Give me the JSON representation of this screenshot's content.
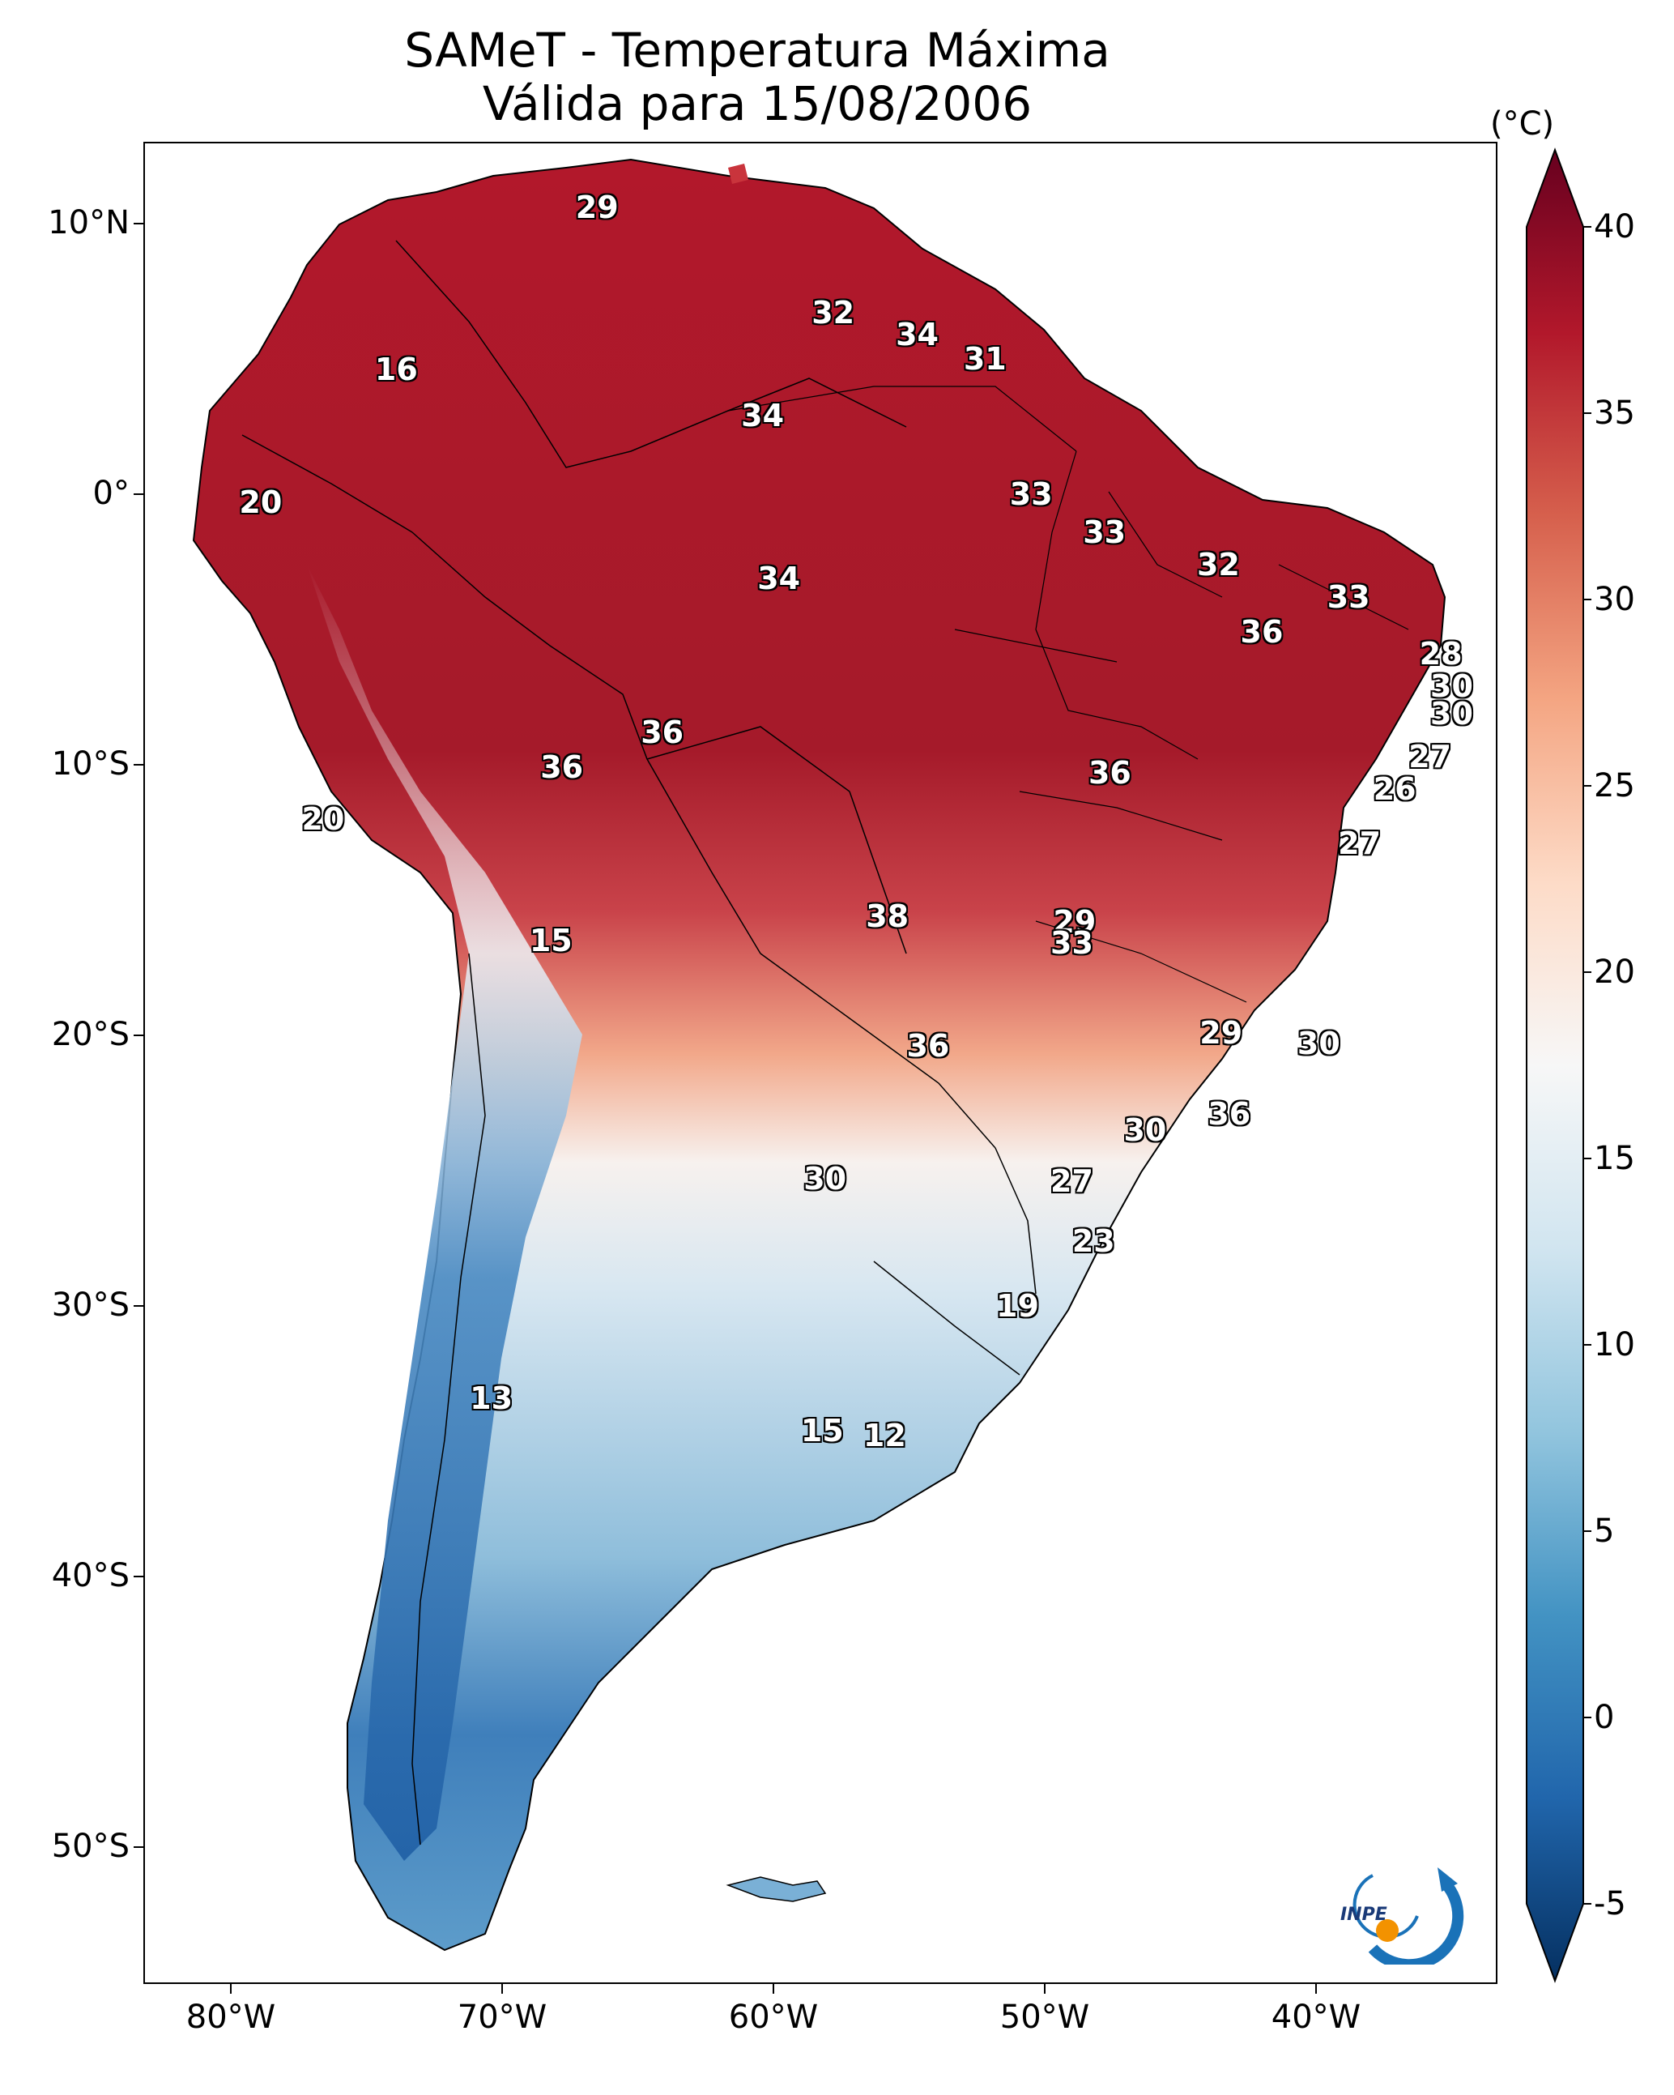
{
  "title": {
    "line1": "SAMeT - Temperatura Máxima",
    "line2": "Válida para 15/08/2006"
  },
  "lat_labels": [
    "10°N",
    "0°",
    "10°S",
    "20°S",
    "30°S",
    "40°S",
    "50°S"
  ],
  "lon_labels": [
    "80°W",
    "70°W",
    "60°W",
    "50°W",
    "40°W"
  ],
  "colorbar": {
    "unit": "(°C)",
    "min": -5,
    "max": 40,
    "tick_labels": [
      "-5",
      "0",
      "5",
      "10",
      "15",
      "20",
      "25",
      "30",
      "35",
      "40"
    ],
    "colors": [
      "#053061",
      "#2166ac",
      "#4393c3",
      "#92c5de",
      "#d1e5f0",
      "#f7f7f7",
      "#fddbc7",
      "#f4a582",
      "#d6604d",
      "#b2182b",
      "#67001f"
    ]
  },
  "station_labels": [
    {
      "text": "29",
      "lon": -66.5,
      "lat": 10.6
    },
    {
      "text": "32",
      "lon": -57.8,
      "lat": 6.7
    },
    {
      "text": "34",
      "lon": -54.7,
      "lat": 5.9
    },
    {
      "text": "31",
      "lon": -52.2,
      "lat": 5.0
    },
    {
      "text": "16",
      "lon": -73.9,
      "lat": 4.6
    },
    {
      "text": "34",
      "lon": -60.4,
      "lat": 2.9
    },
    {
      "text": "20",
      "lon": -78.9,
      "lat": -0.3
    },
    {
      "text": "33",
      "lon": -50.5,
      "lat": 0.0
    },
    {
      "text": "33",
      "lon": -47.8,
      "lat": -1.4
    },
    {
      "text": "32",
      "lon": -43.6,
      "lat": -2.6
    },
    {
      "text": "34",
      "lon": -59.8,
      "lat": -3.1
    },
    {
      "text": "33",
      "lon": -38.8,
      "lat": -3.8
    },
    {
      "text": "36",
      "lon": -42.0,
      "lat": -5.1
    },
    {
      "text": "28",
      "lon": -35.4,
      "lat": -5.9
    },
    {
      "text": "30",
      "lon": -35.0,
      "lat": -7.1
    },
    {
      "text": "30",
      "lon": -35.0,
      "lat": -8.1
    },
    {
      "text": "36",
      "lon": -64.1,
      "lat": -8.8
    },
    {
      "text": "36",
      "lon": -67.8,
      "lat": -10.1
    },
    {
      "text": "36",
      "lon": -47.6,
      "lat": -10.3
    },
    {
      "text": "27",
      "lon": -35.8,
      "lat": -9.7
    },
    {
      "text": "26",
      "lon": -37.1,
      "lat": -10.9
    },
    {
      "text": "20",
      "lon": -76.6,
      "lat": -12.0
    },
    {
      "text": "27",
      "lon": -38.4,
      "lat": -12.9
    },
    {
      "text": "38",
      "lon": -55.8,
      "lat": -15.6
    },
    {
      "text": "29",
      "lon": -48.9,
      "lat": -15.8
    },
    {
      "text": "15",
      "lon": -68.2,
      "lat": -16.5
    },
    {
      "text": "33",
      "lon": -49.0,
      "lat": -16.6
    },
    {
      "text": "29",
      "lon": -43.5,
      "lat": -19.9
    },
    {
      "text": "30",
      "lon": -39.9,
      "lat": -20.3
    },
    {
      "text": "36",
      "lon": -54.3,
      "lat": -20.4
    },
    {
      "text": "36",
      "lon": -43.2,
      "lat": -22.9
    },
    {
      "text": "30",
      "lon": -46.3,
      "lat": -23.5
    },
    {
      "text": "30",
      "lon": -58.1,
      "lat": -25.3
    },
    {
      "text": "27",
      "lon": -49.0,
      "lat": -25.4
    },
    {
      "text": "23",
      "lon": -48.2,
      "lat": -27.6
    },
    {
      "text": "19",
      "lon": -51.0,
      "lat": -30.0
    },
    {
      "text": "13",
      "lon": -70.4,
      "lat": -33.4
    },
    {
      "text": "15",
      "lon": -58.2,
      "lat": -34.6
    },
    {
      "text": "12",
      "lon": -55.9,
      "lat": -34.8
    }
  ],
  "logo": {
    "text": "INPE"
  }
}
